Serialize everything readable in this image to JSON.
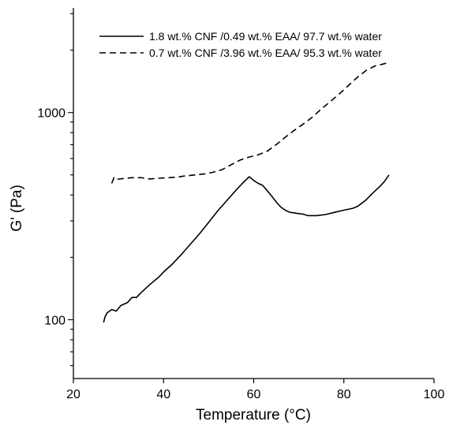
{
  "chart_data": {
    "type": "line",
    "title": "",
    "xlabel": "Temperature (°C)",
    "ylabel": "G' (Pa)",
    "xlim": [
      20,
      100
    ],
    "ylim": [
      52,
      3200
    ],
    "yscale": "log",
    "xticks": [
      20,
      40,
      60,
      80,
      100
    ],
    "yticks_labeled": [
      100,
      1000
    ],
    "grid": false,
    "legend_position": "top-right",
    "series": [
      {
        "name": "1.8 wt.% CNF /0.49 wt.% EAA/ 97.7 wt.% water",
        "line_style": "solid",
        "color": "#000000",
        "points": [
          [
            26.7,
            97
          ],
          [
            27,
            103
          ],
          [
            27.5,
            108
          ],
          [
            28.5,
            112
          ],
          [
            29.5,
            110
          ],
          [
            30.5,
            117
          ],
          [
            32,
            121
          ],
          [
            33,
            128
          ],
          [
            34,
            128
          ],
          [
            35,
            135
          ],
          [
            37,
            148
          ],
          [
            39,
            161
          ],
          [
            40,
            170
          ],
          [
            42,
            186
          ],
          [
            44,
            207
          ],
          [
            46,
            232
          ],
          [
            48,
            260
          ],
          [
            50,
            295
          ],
          [
            52,
            335
          ],
          [
            54,
            375
          ],
          [
            56,
            420
          ],
          [
            57.5,
            455
          ],
          [
            59,
            490
          ],
          [
            60,
            470
          ],
          [
            61,
            455
          ],
          [
            62,
            445
          ],
          [
            63,
            420
          ],
          [
            64,
            395
          ],
          [
            65,
            370
          ],
          [
            66,
            350
          ],
          [
            67,
            338
          ],
          [
            68,
            330
          ],
          [
            69,
            328
          ],
          [
            70,
            325
          ],
          [
            71,
            323
          ],
          [
            72,
            318
          ],
          [
            73,
            318
          ],
          [
            74,
            318
          ],
          [
            76,
            322
          ],
          [
            78,
            330
          ],
          [
            80,
            338
          ],
          [
            82,
            345
          ],
          [
            83,
            352
          ],
          [
            84,
            365
          ],
          [
            85,
            380
          ],
          [
            86,
            400
          ],
          [
            87,
            420
          ],
          [
            88,
            440
          ],
          [
            89,
            465
          ],
          [
            90,
            500
          ]
        ]
      },
      {
        "name": "0.7 wt.% CNF /3.96 wt.% EAA/ 95.3 wt.% water",
        "line_style": "dashed",
        "color": "#000000",
        "points": [
          [
            28.5,
            455
          ],
          [
            29,
            485
          ],
          [
            29.5,
            475
          ],
          [
            31,
            480
          ],
          [
            33,
            485
          ],
          [
            35,
            485
          ],
          [
            37,
            478
          ],
          [
            39,
            482
          ],
          [
            41,
            485
          ],
          [
            43,
            488
          ],
          [
            45,
            495
          ],
          [
            47,
            500
          ],
          [
            49,
            505
          ],
          [
            51,
            515
          ],
          [
            53,
            530
          ],
          [
            55,
            560
          ],
          [
            57,
            590
          ],
          [
            59,
            610
          ],
          [
            61,
            625
          ],
          [
            63,
            650
          ],
          [
            65,
            700
          ],
          [
            67,
            760
          ],
          [
            69,
            820
          ],
          [
            71,
            880
          ],
          [
            73,
            950
          ],
          [
            75,
            1040
          ],
          [
            77,
            1130
          ],
          [
            79,
            1230
          ],
          [
            81,
            1350
          ],
          [
            83,
            1480
          ],
          [
            85,
            1600
          ],
          [
            87,
            1680
          ],
          [
            88,
            1700
          ],
          [
            89,
            1720
          ],
          [
            90,
            1750
          ]
        ]
      }
    ]
  }
}
